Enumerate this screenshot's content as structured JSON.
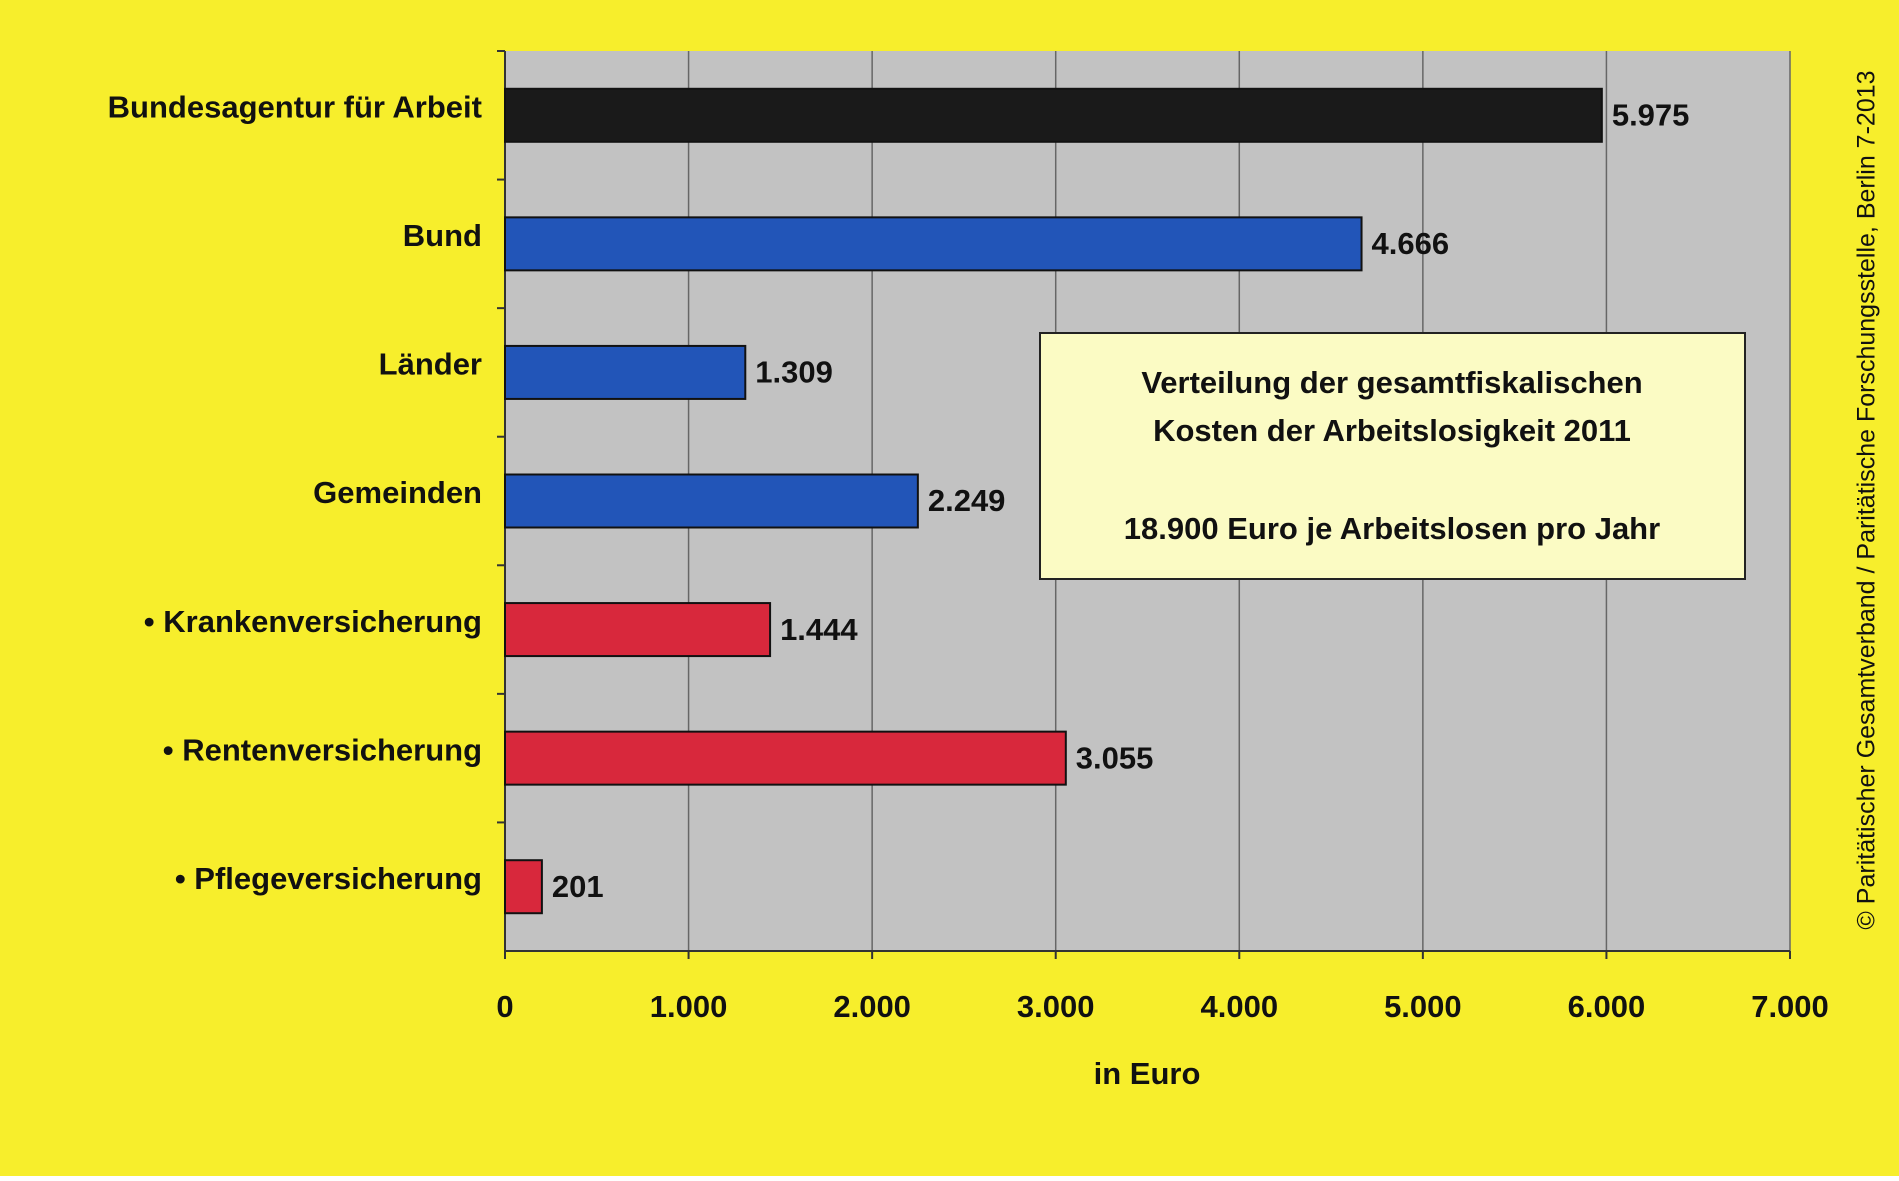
{
  "chart_data": {
    "type": "bar",
    "orientation": "horizontal",
    "categories": [
      "Bundesagentur für Arbeit",
      "Bund",
      "Länder",
      "Gemeinden",
      "• Krankenversicherung",
      "• Rentenversicherung",
      "• Pflegeversicherung"
    ],
    "values": [
      5975,
      4666,
      1309,
      2249,
      1444,
      3055,
      201
    ],
    "value_labels": [
      "5.975",
      "4.666",
      "1.309",
      "2.249",
      "1.444",
      "3.055",
      "201"
    ],
    "colors": [
      "#1a1a1a",
      "#2255b8",
      "#2255b8",
      "#2255b8",
      "#d8283c",
      "#d8283c",
      "#d8283c"
    ],
    "xlim": [
      0,
      7000
    ],
    "xticks": [
      0,
      {
        "value": 1000,
        "label": "1.000"
      },
      {
        "value": 2000,
        "label": "2.000"
      },
      {
        "value": 3000,
        "label": "3.000"
      },
      {
        "value": 4000,
        "label": "4.000"
      },
      {
        "value": 5000,
        "label": "5.000"
      },
      {
        "value": 6000,
        "label": "6.000"
      },
      {
        "value": 7000,
        "label": "7.000"
      }
    ],
    "x_label": "in Euro",
    "grid": true,
    "annotation": {
      "title_lines": [
        "Verteilung der gesamtfiskalischen",
        "Kosten der Arbeitslosigkeit 2011"
      ],
      "subtitle": "18.900 Euro je Arbeitslosen pro Jahr"
    },
    "source": "© Paritätischer Gesamtverband / Paritätische Forschungsstelle, Berlin 7-2013"
  }
}
